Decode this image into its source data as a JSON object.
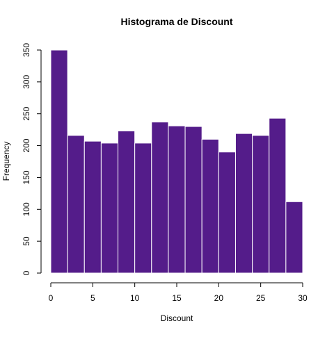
{
  "chart_data": {
    "type": "bar",
    "title": "Histograma de Discount",
    "xlabel": "Discount",
    "ylabel": "Frequency",
    "bins": [
      {
        "start": 0,
        "end": 2,
        "count": 350
      },
      {
        "start": 2,
        "end": 4,
        "count": 216
      },
      {
        "start": 4,
        "end": 6,
        "count": 207
      },
      {
        "start": 6,
        "end": 8,
        "count": 204
      },
      {
        "start": 8,
        "end": 10,
        "count": 223
      },
      {
        "start": 10,
        "end": 12,
        "count": 204
      },
      {
        "start": 12,
        "end": 14,
        "count": 237
      },
      {
        "start": 14,
        "end": 16,
        "count": 231
      },
      {
        "start": 16,
        "end": 18,
        "count": 230
      },
      {
        "start": 18,
        "end": 20,
        "count": 210
      },
      {
        "start": 20,
        "end": 22,
        "count": 190
      },
      {
        "start": 22,
        "end": 24,
        "count": 219
      },
      {
        "start": 24,
        "end": 26,
        "count": 216
      },
      {
        "start": 26,
        "end": 28,
        "count": 243
      },
      {
        "start": 28,
        "end": 30,
        "count": 112
      }
    ],
    "xlim": [
      0,
      30
    ],
    "ylim": [
      0,
      350
    ],
    "xticks": [
      0,
      5,
      10,
      15,
      20,
      25,
      30
    ],
    "yticks": [
      0,
      50,
      100,
      150,
      200,
      250,
      300,
      350
    ],
    "bar_color": "#541C8A",
    "bar_border_color": "#ffffff",
    "grid": false,
    "legend": "none"
  }
}
